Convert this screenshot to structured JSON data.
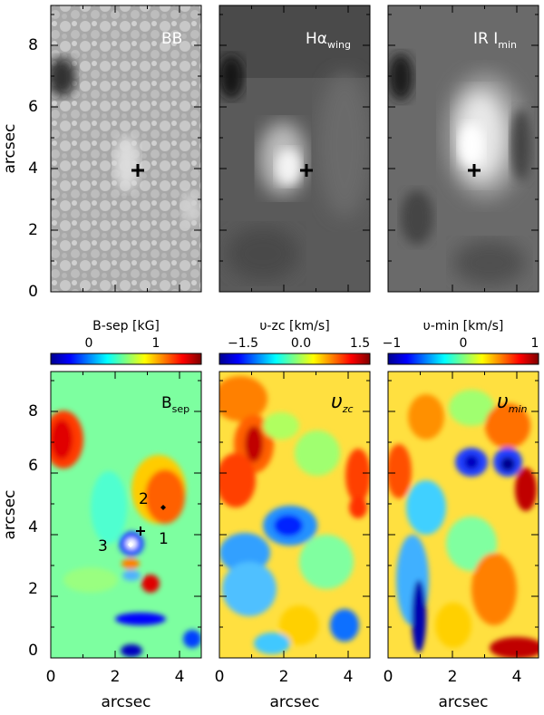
{
  "figure": {
    "top_row": {
      "panels": [
        {
          "id": "bb",
          "label": "BB",
          "label_color": "#ffffff",
          "palette": "gray"
        },
        {
          "id": "ha",
          "label": "Hα",
          "label_sub": "wing",
          "label_color": "#ffffff",
          "palette": "gray"
        },
        {
          "id": "ir",
          "label": "IR I",
          "label_sub": "min",
          "label_color": "#ffffff",
          "palette": "gray"
        }
      ],
      "ylabel": "arcsec",
      "yticks": [
        "0",
        "2",
        "4",
        "6",
        "8"
      ]
    },
    "bottom_row": {
      "panels": [
        {
          "id": "bsep",
          "label": "B",
          "label_sub": "sep",
          "palette": "jet",
          "colorbar": {
            "title": "B-sep   [kG]",
            "ticks": [
              "0",
              "1"
            ]
          },
          "annotations": [
            "2",
            "1",
            "3"
          ]
        },
        {
          "id": "vzc",
          "label": "υ",
          "label_sub": "zc",
          "palette": "jet",
          "colorbar": {
            "title": "υ-zc   [km/s]",
            "ticks": [
              "−1.5",
              "0.0",
              "1.5"
            ]
          }
        },
        {
          "id": "vmin",
          "label": "υ",
          "label_sub": "min",
          "palette": "jet",
          "colorbar": {
            "title": "υ-min [km/s]",
            "ticks": [
              "−1",
              "0",
              "1"
            ]
          }
        }
      ],
      "ylabel": "arcsec",
      "xlabel": "arcsec",
      "yticks": [
        "0",
        "2",
        "4",
        "6",
        "8"
      ],
      "xticks": [
        "0",
        "2",
        "4"
      ]
    },
    "marker": "+"
  }
}
